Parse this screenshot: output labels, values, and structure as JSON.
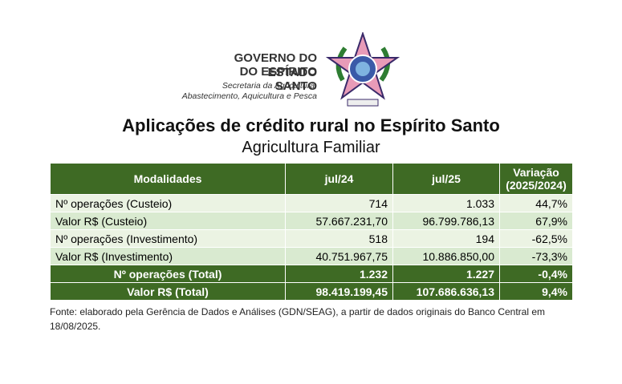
{
  "header": {
    "line1": "GOVERNO DO ESTADO",
    "line2": "DO ESPÍRITO SANTO",
    "secretaria1": "Secretaria da Agricultura,",
    "secretaria2": "Abastecimento, Aquicultura e Pesca"
  },
  "title": "Aplicações de crédito rural no Espírito Santo",
  "subtitle": "Agricultura Familiar",
  "table": {
    "headers": [
      "Modalidades",
      "jul/24",
      "jul/25",
      "Variação (2025/2024)"
    ],
    "rows": [
      [
        "Nº operações (Custeio)",
        "714",
        "1.033",
        "44,7%"
      ],
      [
        "Valor R$ (Custeio)",
        "57.667.231,70",
        "96.799.786,13",
        "67,9%"
      ],
      [
        "Nº operações (Investimento)",
        "518",
        "194",
        "-62,5%"
      ],
      [
        "Valor R$ (Investimento)",
        "40.751.967,75",
        "10.886.850,00",
        "-73,3%"
      ]
    ],
    "totals": [
      [
        "Nº operações (Total)",
        "1.232",
        "1.227",
        "-0,4%"
      ],
      [
        "Valor R$ (Total)",
        "98.419.199,45",
        "107.686.636,13",
        "9,4%"
      ]
    ]
  },
  "footnote": "Fonte: elaborado pela Gerência de Dados e Análises (GDN/SEAG), a partir de dados originais do Banco Central em 18/08/2025."
}
